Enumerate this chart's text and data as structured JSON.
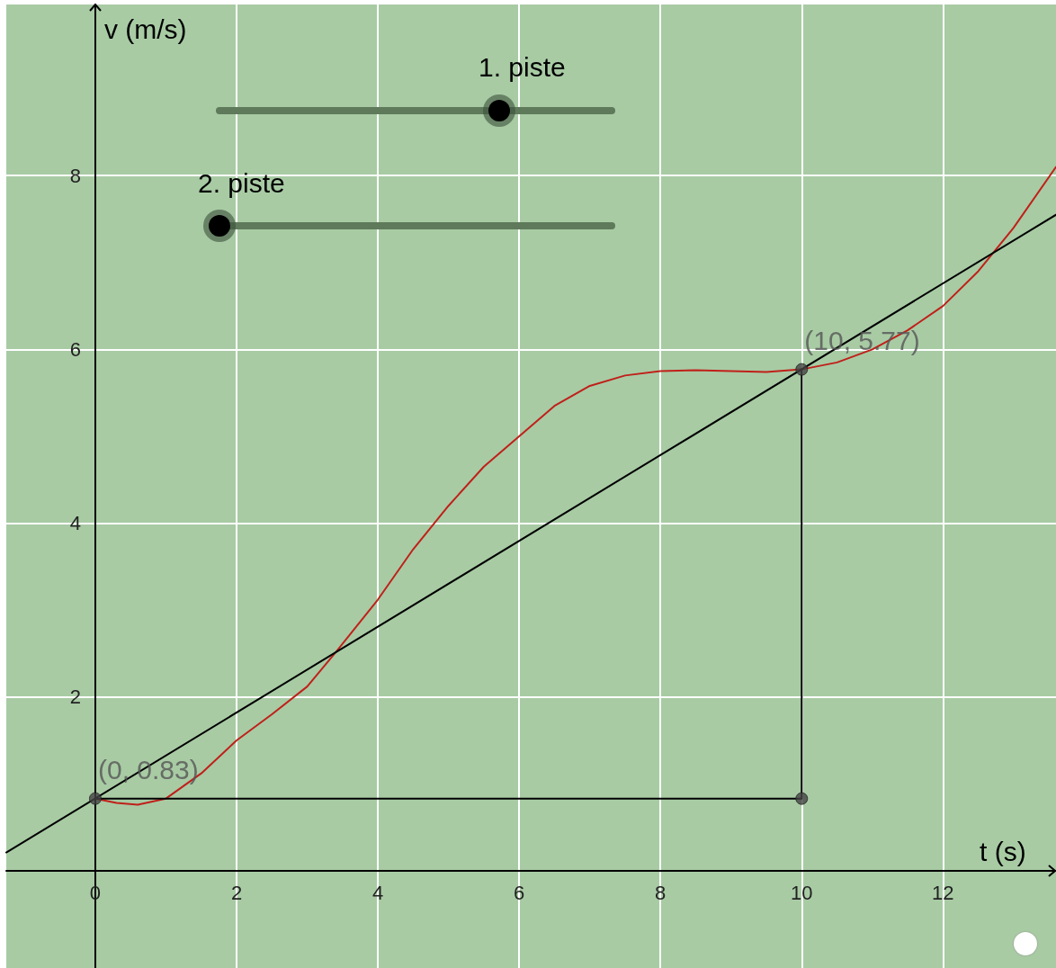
{
  "chart_data": {
    "type": "line",
    "xlabel": "t (s)",
    "ylabel": "v (m/s)",
    "xlim": [
      -1.26,
      13.6
    ],
    "ylim": [
      -1.12,
      9.97
    ],
    "xticks": [
      0,
      2,
      4,
      6,
      8,
      10,
      12
    ],
    "yticks": [
      2,
      4,
      6,
      8
    ],
    "grid": true,
    "marker": "none",
    "annotations": [
      "1. piste",
      "2. piste"
    ],
    "series": [
      {
        "color": "#c0201a",
        "x": [
          0,
          0.3,
          0.6,
          1,
          1.5,
          2,
          2.5,
          3,
          3.4,
          4,
          4.5,
          5,
          5.5,
          6,
          6.5,
          7,
          7.5,
          8,
          8.5,
          9,
          9.5,
          10,
          10.5,
          11,
          11.5,
          12,
          12.5,
          13,
          13.6
        ],
        "values": [
          0.83,
          0.78,
          0.76,
          0.83,
          1.12,
          1.5,
          1.8,
          2.12,
          2.51,
          3.12,
          3.7,
          4.2,
          4.65,
          5.0,
          5.35,
          5.58,
          5.7,
          5.75,
          5.76,
          5.75,
          5.74,
          5.77,
          5.85,
          6.0,
          6.22,
          6.5,
          6.9,
          7.4,
          8.1
        ]
      },
      {
        "color": "#000000",
        "x": [
          -1.26,
          13.6
        ],
        "values": [
          0.21,
          7.55
        ]
      },
      {
        "color": "#000000",
        "x": [
          0,
          10,
          10
        ],
        "values": [
          0.83,
          0.83,
          5.77
        ]
      },
      {
        "type": "scatter",
        "marker": "circle",
        "color": "#444444",
        "x": [
          0,
          10,
          10
        ],
        "values": [
          0.83,
          5.77,
          0.83
        ],
        "value_labels": [
          "(0, 0.83)",
          "(10, 5.77)",
          null
        ]
      }
    ]
  }
}
